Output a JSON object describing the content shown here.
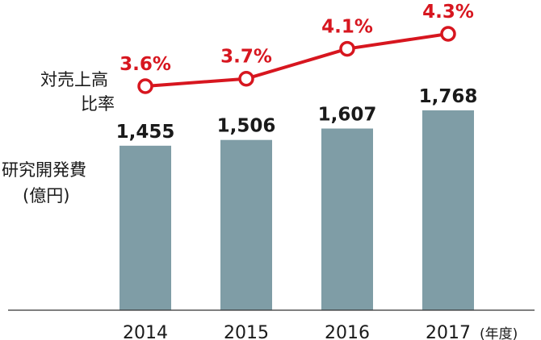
{
  "chart_data": {
    "type": "bar",
    "categories": [
      "2014",
      "2015",
      "2016",
      "2017"
    ],
    "x_unit": "(年度)",
    "series": [
      {
        "name": "研究開発費",
        "name_lines": [
          "研究開発費",
          "(億円)"
        ],
        "values": [
          1455,
          1506,
          1607,
          1768
        ],
        "value_labels": [
          "1,455",
          "1,506",
          "1,607",
          "1,768"
        ],
        "color": "#7f9da6"
      },
      {
        "name": "対売上高比率",
        "name_lines": [
          "対売上高",
          "比率"
        ],
        "type": "line",
        "values": [
          3.6,
          3.7,
          4.1,
          4.3
        ],
        "value_labels": [
          "3.6%",
          "3.7%",
          "4.1%",
          "4.3%"
        ],
        "color": "#d7161f"
      }
    ],
    "ylim_bars": [
      0,
      1960
    ],
    "ylim_line": [
      0,
      4.3
    ],
    "grid": false,
    "legend": "none"
  }
}
